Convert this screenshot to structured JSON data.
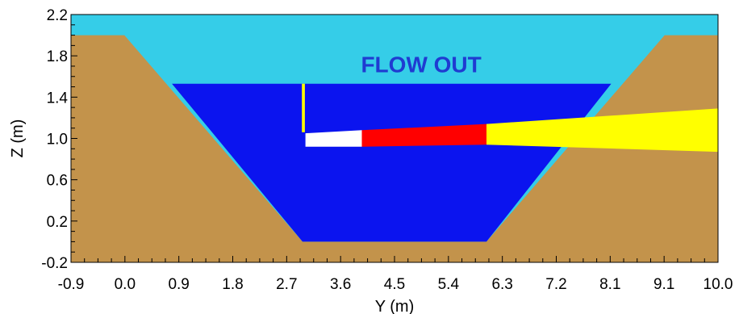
{
  "chart_data": {
    "type": "area",
    "title": "",
    "xlabel": "Y (m)",
    "ylabel": "Z (m)",
    "xlim": [
      -0.9,
      10.0
    ],
    "ylim": [
      -0.2,
      2.2
    ],
    "x_ticks": [
      "-0.9",
      "0.0",
      "0.9",
      "1.8",
      "2.7",
      "3.6",
      "4.5",
      "5.4",
      "6.3",
      "7.2",
      "8.1",
      "9.1",
      "10.0"
    ],
    "y_ticks": [
      "2.2",
      "1.8",
      "1.4",
      "1.0",
      "0.6",
      "0.2",
      "-0.2"
    ],
    "grid": false,
    "annotations": [
      {
        "text": "FLOW OUT",
        "x": 5.0,
        "y": 1.64,
        "color": "#1f3bd1"
      }
    ],
    "colors": {
      "air": "#35cde8",
      "water": "#0b14ef",
      "soil": "#c3934b",
      "jet_white": "#ffffff",
      "jet_red": "#ff0000",
      "jet_yellow": "#ffff00"
    },
    "regions": [
      {
        "name": "air",
        "polygon": [
          [
            -0.9,
            2.2
          ],
          [
            10.0,
            2.2
          ],
          [
            10.0,
            -0.2
          ],
          [
            -0.9,
            -0.2
          ]
        ]
      },
      {
        "name": "soil",
        "polygon": [
          [
            -0.9,
            2.0
          ],
          [
            0.0,
            2.0
          ],
          [
            3.0,
            0.0
          ],
          [
            6.1,
            0.0
          ],
          [
            9.1,
            2.0
          ],
          [
            10.0,
            2.0
          ],
          [
            10.0,
            -0.2
          ],
          [
            -0.9,
            -0.2
          ]
        ]
      },
      {
        "name": "water",
        "polygon": [
          [
            0.8,
            1.53
          ],
          [
            8.2,
            1.53
          ],
          [
            6.1,
            0.0
          ],
          [
            3.0,
            0.0
          ]
        ]
      },
      {
        "name": "jet_yellow",
        "polygon": [
          [
            6.1,
            1.14
          ],
          [
            10.0,
            1.29
          ],
          [
            10.0,
            0.87
          ],
          [
            6.1,
            0.94
          ]
        ]
      },
      {
        "name": "jet_red",
        "polygon": [
          [
            4.0,
            1.08
          ],
          [
            6.1,
            1.14
          ],
          [
            6.1,
            0.94
          ],
          [
            4.0,
            0.92
          ]
        ]
      },
      {
        "name": "jet_white",
        "polygon": [
          [
            3.05,
            1.05
          ],
          [
            4.0,
            1.08
          ],
          [
            4.0,
            0.92
          ],
          [
            3.05,
            0.92
          ]
        ]
      },
      {
        "name": "jet_yellow",
        "polygon": [
          [
            2.99,
            1.53
          ],
          [
            3.04,
            1.53
          ],
          [
            3.04,
            1.06
          ],
          [
            2.99,
            1.06
          ]
        ]
      }
    ]
  }
}
